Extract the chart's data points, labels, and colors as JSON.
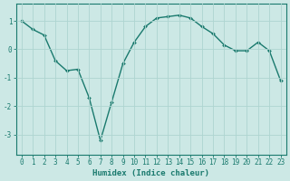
{
  "x": [
    0,
    1,
    2,
    3,
    4,
    5,
    6,
    7,
    8,
    9,
    10,
    11,
    12,
    13,
    14,
    15,
    16,
    17,
    18,
    19,
    20,
    21,
    22,
    23
  ],
  "y": [
    1.0,
    0.7,
    0.5,
    -0.4,
    -0.75,
    -0.7,
    -1.7,
    -3.2,
    -1.85,
    -0.5,
    0.25,
    0.8,
    1.1,
    1.15,
    1.2,
    1.1,
    0.8,
    0.55,
    0.15,
    -0.05,
    -0.05,
    0.25,
    -0.05,
    -1.1
  ],
  "line_color": "#1a7a6e",
  "marker": "D",
  "marker_size": 2.0,
  "bg_color": "#cce8e5",
  "grid_color": "#aed4d0",
  "axis_color": "#1a7a6e",
  "xlabel": "Humidex (Indice chaleur)",
  "xlim": [
    -0.5,
    23.5
  ],
  "ylim": [
    -3.7,
    1.6
  ],
  "yticks": [
    -3,
    -2,
    -1,
    0,
    1
  ],
  "tick_fontsize": 5.5,
  "label_fontsize": 6.5
}
